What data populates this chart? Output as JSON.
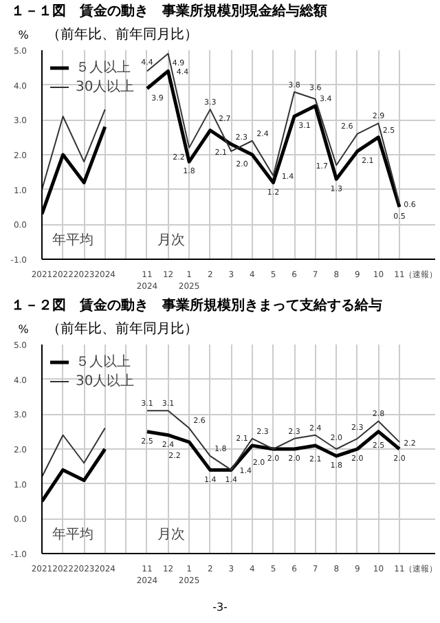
{
  "chart_data": [
    {
      "type": "line",
      "title": "１－１図　賃金の動き　事業所規模別現金給与総額",
      "subtitle": "（前年比、前年同月比）",
      "ylabel": "%",
      "xlabel": "（速報）",
      "categories": [
        "2021",
        "2022",
        "2023",
        "2024",
        null,
        "11\n2024",
        "12",
        "1\n2025",
        "2",
        "3",
        "4",
        "5",
        "6",
        "7",
        "8",
        "9",
        "10",
        "11"
      ],
      "series": [
        {
          "name": "５人以上",
          "color": "#000000",
          "values": [
            0.3,
            2.0,
            1.2,
            2.8,
            null,
            3.9,
            4.4,
            1.8,
            2.7,
            2.3,
            2.0,
            1.2,
            3.1,
            3.4,
            1.3,
            2.1,
            2.5,
            0.5
          ],
          "value_labels": [
            null,
            null,
            null,
            null,
            null,
            "3.9",
            "4.4",
            "1.8",
            "2.7",
            "2.3",
            "2.0",
            "1.2",
            "3.1",
            "3.4",
            "1.3",
            "2.1",
            "2.5",
            "0.5"
          ]
        },
        {
          "name": "30人以上",
          "color": "#333333",
          "values": [
            1.0,
            3.1,
            1.8,
            3.3,
            null,
            4.4,
            4.9,
            2.2,
            3.3,
            2.1,
            2.4,
            1.4,
            3.8,
            3.6,
            1.7,
            2.6,
            2.9,
            0.6
          ],
          "value_labels": [
            null,
            null,
            null,
            null,
            null,
            "4.4",
            "4.9",
            "2.2",
            "3.3",
            "2.1",
            "2.4",
            "1.4",
            "3.8",
            "3.6",
            "1.7",
            "2.6",
            "2.9",
            "0.6"
          ]
        }
      ],
      "ylim": [
        -1,
        5
      ],
      "yticks": [
        {
          "value": -1,
          "label": "-1.0"
        },
        {
          "value": 0,
          "label": "0.0"
        },
        {
          "value": 1,
          "label": "1.0"
        },
        {
          "value": 2,
          "label": "2.0"
        },
        {
          "value": 3,
          "label": "3.0"
        },
        {
          "value": 4,
          "label": "4.0"
        },
        {
          "value": 5,
          "label": "5.0"
        }
      ],
      "grid": true,
      "legend": "top left",
      "annotations": [
        "年平均",
        "月次"
      ]
    },
    {
      "type": "line",
      "title": "１－２図　賃金の動き　事業所規模別きまって支給する給与",
      "subtitle": "（前年比、前年同月比）",
      "ylabel": "%",
      "xlabel": "（速報）",
      "categories": [
        "2021",
        "2022",
        "2023",
        "2024",
        null,
        "11\n2024",
        "12",
        "1\n2025",
        "2",
        "3",
        "4",
        "5",
        "6",
        "7",
        "8",
        "9",
        "10",
        "11"
      ],
      "series": [
        {
          "name": "５人以上",
          "color": "#000000",
          "values": [
            0.5,
            1.4,
            1.1,
            2.0,
            null,
            2.5,
            2.4,
            2.2,
            1.4,
            1.4,
            2.1,
            2.0,
            2.0,
            2.1,
            1.8,
            2.0,
            2.5,
            2.0
          ],
          "value_labels": [
            null,
            null,
            null,
            null,
            null,
            "2.5",
            "2.4",
            "2.2",
            "1.4",
            "1.4",
            "2.1",
            "2.0",
            "2.0",
            "2.1",
            "1.8",
            "2.0",
            "2.5",
            "2.0"
          ]
        },
        {
          "name": "30人以上",
          "color": "#333333",
          "values": [
            1.2,
            2.4,
            1.6,
            2.6,
            null,
            3.1,
            3.1,
            2.6,
            1.8,
            1.4,
            2.3,
            2.0,
            2.3,
            2.4,
            2.0,
            2.3,
            2.8,
            2.2
          ],
          "value_labels": [
            null,
            null,
            null,
            null,
            null,
            "3.1",
            "3.1",
            "2.6",
            "1.8",
            "1.4",
            "2.3",
            "2.0",
            "2.3",
            "2.4",
            "2.0",
            "2.3",
            "2.8",
            "2.2"
          ]
        }
      ],
      "ylim": [
        -1,
        5
      ],
      "yticks": [
        {
          "value": -1,
          "label": "-1.0"
        },
        {
          "value": 0,
          "label": "0.0"
        },
        {
          "value": 1,
          "label": "1.0"
        },
        {
          "value": 2,
          "label": "2.0"
        },
        {
          "value": 3,
          "label": "3.0"
        },
        {
          "value": 4,
          "label": "4.0"
        },
        {
          "value": 5,
          "label": "5.0"
        }
      ],
      "grid": true,
      "legend": "top left",
      "annotations": [
        "年平均",
        "月次",
        "-3-"
      ]
    }
  ]
}
